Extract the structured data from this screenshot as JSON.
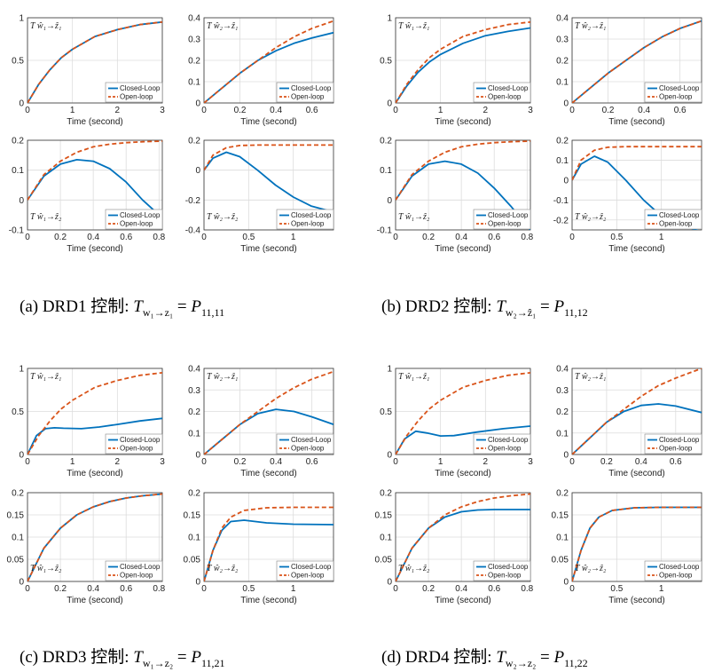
{
  "colors": {
    "closed": "#0072BD",
    "open": "#D95319"
  },
  "legend": {
    "closed": "Closed-Loop",
    "open": "Open-loop"
  },
  "xlabel": "Time (second)",
  "captions": [
    {
      "label": "(a) DRD1 控制:",
      "lhs": "T",
      "lhs_sub": "w₁→z₁",
      "rhs": "P",
      "rhs_sub": "11,11"
    },
    {
      "label": "(b) DRD2 控制:",
      "lhs": "T",
      "lhs_sub": "w₂→ẑ₁",
      "rhs": "P",
      "rhs_sub": "11,12"
    },
    {
      "label": "(c) DRD3 控制:",
      "lhs": "T",
      "lhs_sub": "w₁→z₂",
      "rhs": "P",
      "rhs_sub": "11,21"
    },
    {
      "label": "(d) DRD4 控制:",
      "lhs": "T",
      "lhs_sub": "w₂→z₂",
      "rhs": "P",
      "rhs_sub": "11,22"
    }
  ],
  "chart_data": [
    {
      "id": "a1",
      "type": "line",
      "annotation": "T ŵ₁→ẑ₁",
      "xlim": [
        0,
        3
      ],
      "ylim": [
        0,
        1
      ],
      "xticks": [
        0,
        1,
        2,
        3
      ],
      "yticks": [
        0,
        0.5,
        1
      ],
      "series": [
        {
          "name": "Closed-Loop",
          "x": [
            0,
            0.25,
            0.5,
            0.75,
            1,
            1.5,
            2,
            2.5,
            3
          ],
          "y": [
            0,
            0.22,
            0.39,
            0.53,
            0.63,
            0.78,
            0.86,
            0.92,
            0.95
          ]
        },
        {
          "name": "Open-loop",
          "x": [
            0,
            0.25,
            0.5,
            0.75,
            1,
            1.5,
            2,
            2.5,
            3
          ],
          "y": [
            0,
            0.22,
            0.39,
            0.53,
            0.63,
            0.78,
            0.86,
            0.92,
            0.95
          ]
        }
      ]
    },
    {
      "id": "a2",
      "type": "line",
      "annotation": "T ŵ₂→ẑ₁",
      "xlim": [
        0,
        0.72
      ],
      "ylim": [
        0,
        0.4
      ],
      "xticks": [
        0,
        0.2,
        0.4,
        0.6
      ],
      "yticks": [
        0,
        0.1,
        0.2,
        0.3,
        0.4
      ],
      "series": [
        {
          "name": "Closed-Loop",
          "x": [
            0,
            0.1,
            0.2,
            0.3,
            0.4,
            0.5,
            0.6,
            0.72
          ],
          "y": [
            0,
            0.07,
            0.14,
            0.2,
            0.245,
            0.28,
            0.305,
            0.33
          ]
        },
        {
          "name": "Open-loop",
          "x": [
            0,
            0.1,
            0.2,
            0.3,
            0.4,
            0.5,
            0.6,
            0.72
          ],
          "y": [
            0,
            0.07,
            0.14,
            0.2,
            0.26,
            0.31,
            0.35,
            0.385
          ]
        }
      ]
    },
    {
      "id": "b1",
      "type": "line",
      "annotation": "T ŵ₁→ẑ₁",
      "xlim": [
        0,
        3
      ],
      "ylim": [
        0,
        1
      ],
      "xticks": [
        0,
        1,
        2,
        3
      ],
      "yticks": [
        0,
        0.5,
        1
      ],
      "series": [
        {
          "name": "Closed-Loop",
          "x": [
            0,
            0.25,
            0.5,
            0.75,
            1,
            1.5,
            2,
            2.5,
            3
          ],
          "y": [
            0,
            0.2,
            0.36,
            0.48,
            0.57,
            0.7,
            0.79,
            0.84,
            0.88
          ]
        },
        {
          "name": "Open-loop",
          "x": [
            0,
            0.25,
            0.5,
            0.75,
            1,
            1.5,
            2,
            2.5,
            3
          ],
          "y": [
            0,
            0.22,
            0.39,
            0.53,
            0.63,
            0.78,
            0.86,
            0.92,
            0.95
          ]
        }
      ]
    },
    {
      "id": "b2",
      "type": "line",
      "annotation": "T ŵ₂→ẑ₁",
      "xlim": [
        0,
        0.72
      ],
      "ylim": [
        0,
        0.4
      ],
      "xticks": [
        0,
        0.2,
        0.4,
        0.6
      ],
      "yticks": [
        0,
        0.1,
        0.2,
        0.3,
        0.4
      ],
      "series": [
        {
          "name": "Closed-Loop",
          "x": [
            0,
            0.1,
            0.2,
            0.3,
            0.4,
            0.5,
            0.6,
            0.72
          ],
          "y": [
            0,
            0.07,
            0.14,
            0.2,
            0.26,
            0.31,
            0.35,
            0.385
          ]
        },
        {
          "name": "Open-loop",
          "x": [
            0,
            0.1,
            0.2,
            0.3,
            0.4,
            0.5,
            0.6,
            0.72
          ],
          "y": [
            0,
            0.07,
            0.14,
            0.2,
            0.26,
            0.31,
            0.35,
            0.385
          ]
        }
      ]
    },
    {
      "id": "a3",
      "type": "line",
      "annotation": "T ŵ₁→ẑ₂",
      "xlim": [
        0,
        0.82
      ],
      "ylim": [
        -0.1,
        0.2
      ],
      "xticks": [
        0,
        0.2,
        0.4,
        0.6,
        0.8
      ],
      "yticks": [
        -0.1,
        0,
        0.1,
        0.2
      ],
      "series": [
        {
          "name": "Closed-Loop",
          "x": [
            0,
            0.1,
            0.2,
            0.3,
            0.4,
            0.5,
            0.6,
            0.7,
            0.82
          ],
          "y": [
            0,
            0.08,
            0.12,
            0.135,
            0.13,
            0.105,
            0.06,
            0.0,
            -0.06
          ]
        },
        {
          "name": "Open-loop",
          "x": [
            0,
            0.1,
            0.2,
            0.3,
            0.4,
            0.5,
            0.6,
            0.7,
            0.82
          ],
          "y": [
            0,
            0.085,
            0.13,
            0.16,
            0.178,
            0.187,
            0.192,
            0.195,
            0.197
          ]
        }
      ]
    },
    {
      "id": "a4",
      "type": "line",
      "annotation": "T ŵ₂→ẑ₂",
      "xlim": [
        0,
        1.45
      ],
      "ylim": [
        -0.4,
        0.2
      ],
      "xticks": [
        0,
        0.5,
        1
      ],
      "yticks": [
        -0.4,
        -0.2,
        0,
        0.2
      ],
      "series": [
        {
          "name": "Closed-Loop",
          "x": [
            0,
            0.1,
            0.25,
            0.4,
            0.6,
            0.8,
            1.0,
            1.2,
            1.45
          ],
          "y": [
            0,
            0.08,
            0.12,
            0.09,
            0.0,
            -0.1,
            -0.18,
            -0.24,
            -0.28
          ]
        },
        {
          "name": "Open-loop",
          "x": [
            0,
            0.1,
            0.25,
            0.4,
            0.6,
            0.8,
            1.0,
            1.2,
            1.45
          ],
          "y": [
            0,
            0.1,
            0.15,
            0.165,
            0.168,
            0.168,
            0.168,
            0.168,
            0.168
          ]
        }
      ]
    },
    {
      "id": "b3",
      "type": "line",
      "annotation": "T ŵ₁→ẑ₂",
      "xlim": [
        0,
        0.82
      ],
      "ylim": [
        -0.1,
        0.2
      ],
      "xticks": [
        0,
        0.2,
        0.4,
        0.6,
        0.8
      ],
      "yticks": [
        -0.1,
        0,
        0.1,
        0.2
      ],
      "series": [
        {
          "name": "Closed-Loop",
          "x": [
            0,
            0.1,
            0.2,
            0.3,
            0.4,
            0.5,
            0.6,
            0.7,
            0.82
          ],
          "y": [
            0,
            0.08,
            0.12,
            0.13,
            0.12,
            0.09,
            0.04,
            -0.02,
            -0.1
          ]
        },
        {
          "name": "Open-loop",
          "x": [
            0,
            0.1,
            0.2,
            0.3,
            0.4,
            0.5,
            0.6,
            0.7,
            0.82
          ],
          "y": [
            0,
            0.085,
            0.13,
            0.16,
            0.178,
            0.187,
            0.192,
            0.195,
            0.197
          ]
        }
      ]
    },
    {
      "id": "b4",
      "type": "line",
      "annotation": "T ŵ₂→ẑ₂",
      "xlim": [
        0,
        1.45
      ],
      "ylim": [
        -0.25,
        0.2
      ],
      "xticks": [
        0,
        0.5,
        1
      ],
      "yticks": [
        -0.2,
        -0.1,
        0,
        0.1,
        0.2
      ],
      "series": [
        {
          "name": "Closed-Loop",
          "x": [
            0,
            0.1,
            0.25,
            0.4,
            0.6,
            0.8,
            1.0,
            1.2,
            1.45
          ],
          "y": [
            0,
            0.08,
            0.12,
            0.09,
            0.0,
            -0.1,
            -0.18,
            -0.22,
            -0.26
          ]
        },
        {
          "name": "Open-loop",
          "x": [
            0,
            0.1,
            0.25,
            0.4,
            0.6,
            0.8,
            1.0,
            1.2,
            1.45
          ],
          "y": [
            0,
            0.1,
            0.15,
            0.165,
            0.168,
            0.168,
            0.168,
            0.168,
            0.168
          ]
        }
      ]
    },
    {
      "id": "c1",
      "type": "line",
      "annotation": "T ŵ₁→ẑ₁",
      "xlim": [
        0,
        3
      ],
      "ylim": [
        0,
        1
      ],
      "xticks": [
        0,
        1,
        2,
        3
      ],
      "yticks": [
        0,
        0.5,
        1
      ],
      "series": [
        {
          "name": "Closed-Loop",
          "x": [
            0,
            0.2,
            0.4,
            0.6,
            0.8,
            1.2,
            1.6,
            2.0,
            2.5,
            3
          ],
          "y": [
            0,
            0.22,
            0.3,
            0.31,
            0.305,
            0.3,
            0.32,
            0.35,
            0.39,
            0.42
          ]
        },
        {
          "name": "Open-loop",
          "x": [
            0,
            0.25,
            0.5,
            0.75,
            1,
            1.5,
            2,
            2.5,
            3
          ],
          "y": [
            0,
            0.22,
            0.39,
            0.53,
            0.63,
            0.78,
            0.86,
            0.92,
            0.95
          ]
        }
      ]
    },
    {
      "id": "c2",
      "type": "line",
      "annotation": "T ŵ₂→ẑ₁",
      "xlim": [
        0,
        0.72
      ],
      "ylim": [
        0,
        0.4
      ],
      "xticks": [
        0,
        0.2,
        0.4,
        0.6
      ],
      "yticks": [
        0,
        0.1,
        0.2,
        0.3,
        0.4
      ],
      "series": [
        {
          "name": "Closed-Loop",
          "x": [
            0,
            0.1,
            0.2,
            0.3,
            0.4,
            0.5,
            0.6,
            0.72
          ],
          "y": [
            0,
            0.07,
            0.14,
            0.19,
            0.21,
            0.2,
            0.175,
            0.14
          ]
        },
        {
          "name": "Open-loop",
          "x": [
            0,
            0.1,
            0.2,
            0.3,
            0.4,
            0.5,
            0.6,
            0.72
          ],
          "y": [
            0,
            0.07,
            0.14,
            0.2,
            0.26,
            0.31,
            0.35,
            0.385
          ]
        }
      ]
    },
    {
      "id": "d1",
      "type": "line",
      "annotation": "T ŵ₁→ẑ₁",
      "xlim": [
        0,
        3
      ],
      "ylim": [
        0,
        1
      ],
      "xticks": [
        0,
        1,
        2,
        3
      ],
      "yticks": [
        0,
        0.5,
        1
      ],
      "series": [
        {
          "name": "Closed-Loop",
          "x": [
            0,
            0.2,
            0.45,
            0.7,
            1.0,
            1.3,
            1.8,
            2.4,
            3
          ],
          "y": [
            0,
            0.18,
            0.27,
            0.25,
            0.215,
            0.22,
            0.26,
            0.3,
            0.33
          ]
        },
        {
          "name": "Open-loop",
          "x": [
            0,
            0.25,
            0.5,
            0.75,
            1,
            1.5,
            2,
            2.5,
            3
          ],
          "y": [
            0,
            0.22,
            0.39,
            0.53,
            0.63,
            0.78,
            0.86,
            0.92,
            0.95
          ]
        }
      ]
    },
    {
      "id": "d2",
      "type": "line",
      "annotation": "T ŵ₂→ẑ₁",
      "xlim": [
        0,
        0.75
      ],
      "ylim": [
        0,
        0.4
      ],
      "xticks": [
        0,
        0.2,
        0.4,
        0.6
      ],
      "yticks": [
        0,
        0.1,
        0.2,
        0.3,
        0.4
      ],
      "series": [
        {
          "name": "Closed-Loop",
          "x": [
            0,
            0.1,
            0.2,
            0.3,
            0.4,
            0.5,
            0.6,
            0.75
          ],
          "y": [
            0,
            0.075,
            0.15,
            0.2,
            0.228,
            0.235,
            0.225,
            0.195
          ]
        },
        {
          "name": "Open-loop",
          "x": [
            0,
            0.1,
            0.2,
            0.3,
            0.4,
            0.5,
            0.6,
            0.75
          ],
          "y": [
            0,
            0.075,
            0.15,
            0.21,
            0.27,
            0.32,
            0.355,
            0.4
          ]
        }
      ]
    },
    {
      "id": "c3",
      "type": "line",
      "annotation": "T ŵ₁→ẑ₂",
      "xlim": [
        0,
        0.82
      ],
      "ylim": [
        0,
        0.2
      ],
      "xticks": [
        0,
        0.2,
        0.4,
        0.6,
        0.8
      ],
      "yticks": [
        0,
        0.05,
        0.1,
        0.15,
        0.2
      ],
      "series": [
        {
          "name": "Closed-Loop",
          "x": [
            0,
            0.1,
            0.2,
            0.3,
            0.4,
            0.5,
            0.6,
            0.7,
            0.82
          ],
          "y": [
            0,
            0.075,
            0.12,
            0.15,
            0.168,
            0.18,
            0.188,
            0.193,
            0.197
          ]
        },
        {
          "name": "Open-loop",
          "x": [
            0,
            0.1,
            0.2,
            0.3,
            0.4,
            0.5,
            0.6,
            0.7,
            0.82
          ],
          "y": [
            0,
            0.075,
            0.12,
            0.15,
            0.168,
            0.18,
            0.188,
            0.193,
            0.197
          ]
        }
      ]
    },
    {
      "id": "c4",
      "type": "line",
      "annotation": "T ŵ₂→ẑ₂",
      "xlim": [
        0,
        1.45
      ],
      "ylim": [
        0,
        0.2
      ],
      "xticks": [
        0,
        0.5,
        1
      ],
      "yticks": [
        0,
        0.05,
        0.1,
        0.15,
        0.2
      ],
      "series": [
        {
          "name": "Closed-Loop",
          "x": [
            0,
            0.1,
            0.2,
            0.3,
            0.45,
            0.7,
            1.0,
            1.45
          ],
          "y": [
            0,
            0.07,
            0.115,
            0.135,
            0.138,
            0.132,
            0.129,
            0.128
          ]
        },
        {
          "name": "Open-loop",
          "x": [
            0,
            0.1,
            0.2,
            0.3,
            0.45,
            0.7,
            1.0,
            1.45
          ],
          "y": [
            0,
            0.07,
            0.12,
            0.145,
            0.16,
            0.166,
            0.167,
            0.167
          ]
        }
      ]
    },
    {
      "id": "d3",
      "type": "line",
      "annotation": "T ŵ₁→ẑ₂",
      "xlim": [
        0,
        0.82
      ],
      "ylim": [
        0,
        0.2
      ],
      "xticks": [
        0,
        0.2,
        0.4,
        0.6,
        0.8
      ],
      "yticks": [
        0,
        0.05,
        0.1,
        0.15,
        0.2
      ],
      "series": [
        {
          "name": "Closed-Loop",
          "x": [
            0,
            0.1,
            0.2,
            0.3,
            0.4,
            0.5,
            0.6,
            0.7,
            0.82
          ],
          "y": [
            0,
            0.075,
            0.12,
            0.145,
            0.157,
            0.161,
            0.162,
            0.162,
            0.162
          ]
        },
        {
          "name": "Open-loop",
          "x": [
            0,
            0.1,
            0.2,
            0.3,
            0.4,
            0.5,
            0.6,
            0.7,
            0.82
          ],
          "y": [
            0,
            0.075,
            0.12,
            0.15,
            0.168,
            0.18,
            0.188,
            0.193,
            0.197
          ]
        }
      ]
    },
    {
      "id": "d4",
      "type": "line",
      "annotation": "T ŵ₂→ẑ₂",
      "xlim": [
        0,
        1.45
      ],
      "ylim": [
        0,
        0.2
      ],
      "xticks": [
        0,
        0.5,
        1
      ],
      "yticks": [
        0,
        0.05,
        0.1,
        0.15,
        0.2
      ],
      "series": [
        {
          "name": "Closed-Loop",
          "x": [
            0,
            0.1,
            0.2,
            0.3,
            0.45,
            0.7,
            1.0,
            1.45
          ],
          "y": [
            0,
            0.07,
            0.12,
            0.145,
            0.16,
            0.166,
            0.167,
            0.167
          ]
        },
        {
          "name": "Open-loop",
          "x": [
            0,
            0.1,
            0.2,
            0.3,
            0.45,
            0.7,
            1.0,
            1.45
          ],
          "y": [
            0,
            0.07,
            0.12,
            0.145,
            0.16,
            0.166,
            0.167,
            0.167
          ]
        }
      ]
    }
  ]
}
